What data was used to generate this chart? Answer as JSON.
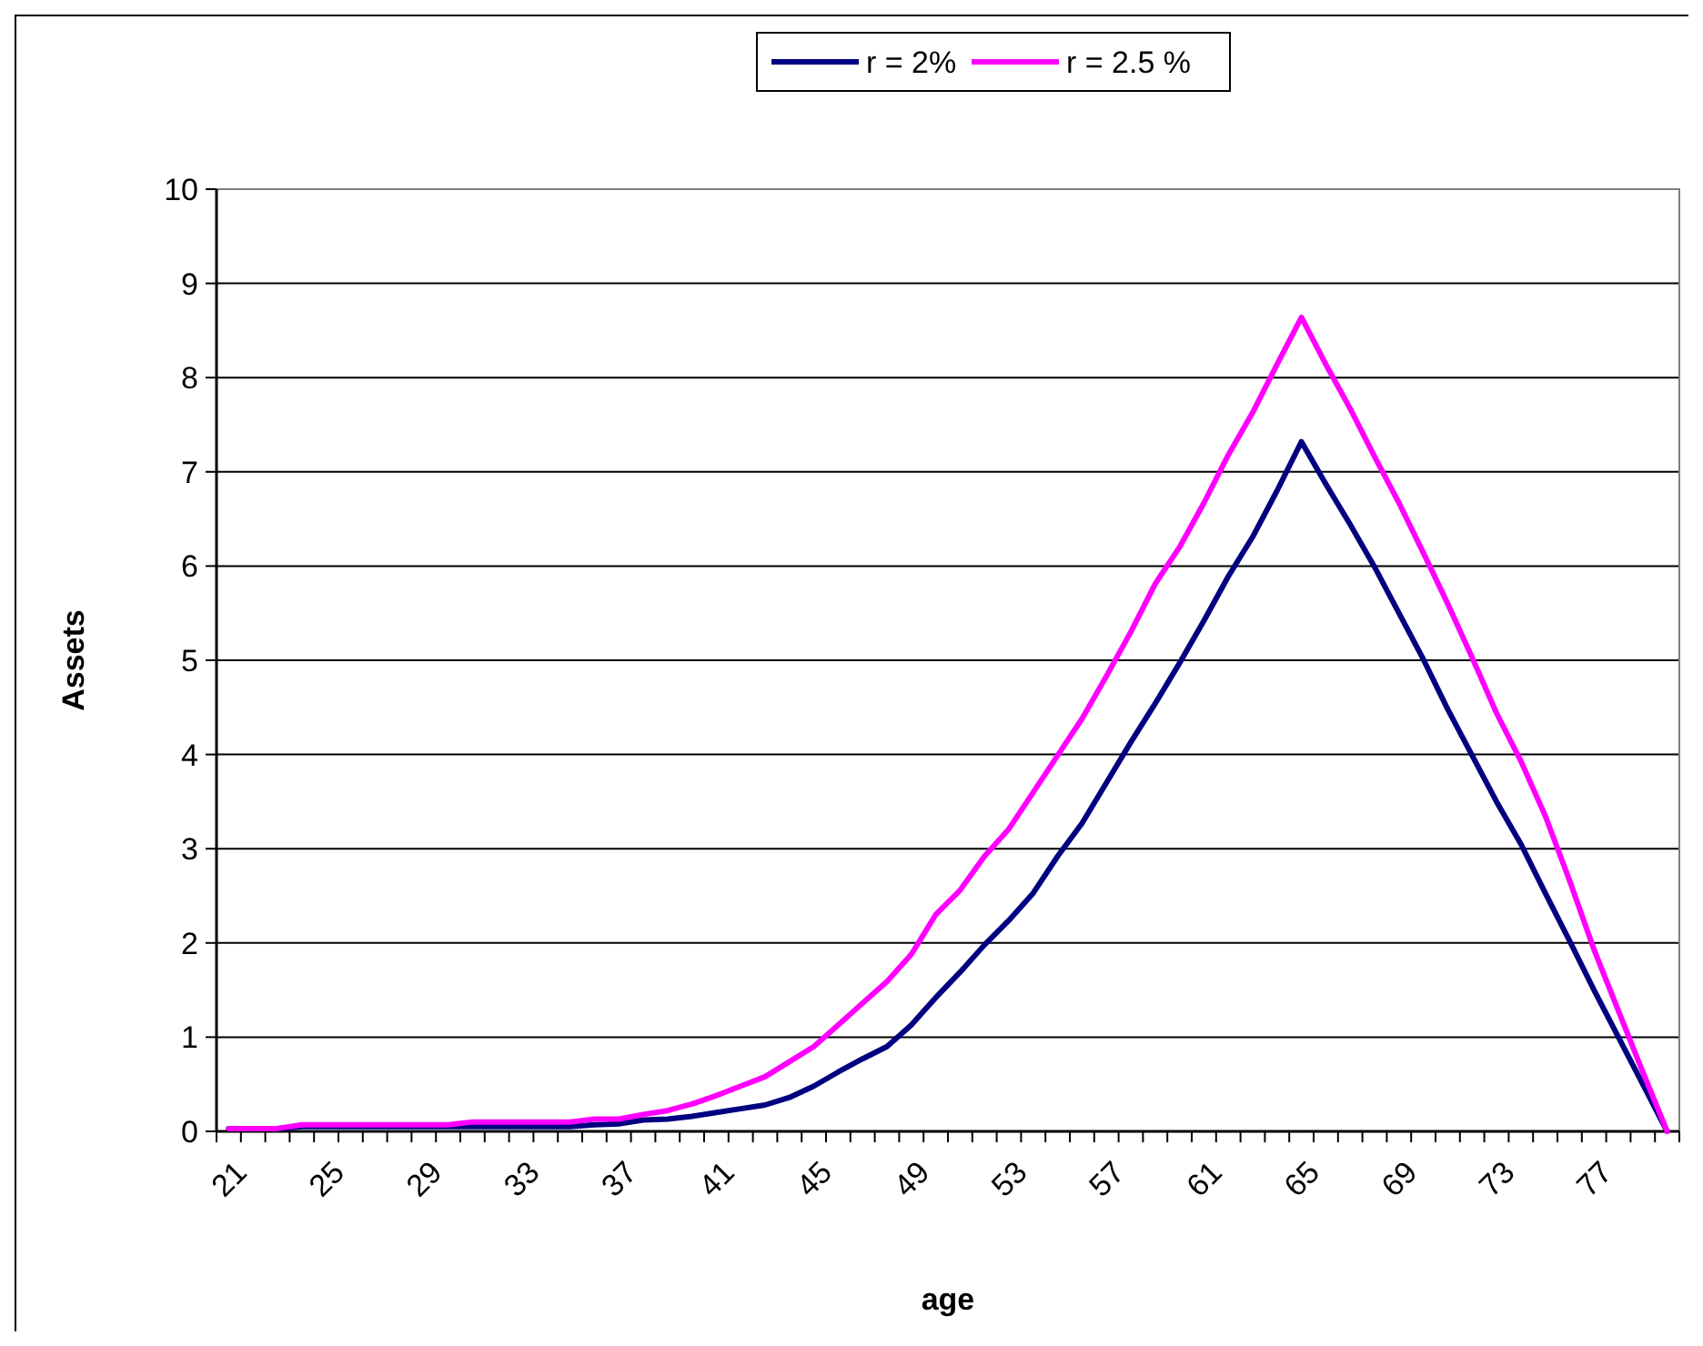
{
  "chart_data": {
    "type": "line",
    "xlabel": "age",
    "ylabel": "Assets",
    "categories": [
      "21",
      null,
      null,
      null,
      "25",
      null,
      null,
      null,
      "29",
      null,
      null,
      null,
      "33",
      null,
      null,
      null,
      "37",
      null,
      null,
      null,
      "41",
      null,
      null,
      null,
      "45",
      null,
      null,
      null,
      "49",
      null,
      null,
      null,
      "53",
      null,
      null,
      null,
      "57",
      null,
      null,
      null,
      "61",
      null,
      null,
      null,
      "65",
      null,
      null,
      null,
      "69",
      null,
      null,
      null,
      "73",
      null,
      null,
      null,
      "77",
      null,
      null,
      null
    ],
    "series": [
      {
        "name": "r = 2%",
        "color": "#000080",
        "values": [
          0.03,
          0.03,
          0.03,
          0.05,
          0.05,
          0.05,
          0.05,
          0.05,
          0.05,
          0.05,
          0.05,
          0.05,
          0.05,
          0.05,
          0.05,
          0.07,
          0.08,
          0.12,
          0.13,
          0.16,
          0.2,
          0.24,
          0.28,
          0.36,
          0.48,
          0.63,
          0.77,
          0.9,
          1.13,
          1.42,
          1.69,
          1.98,
          2.24,
          2.53,
          2.92,
          3.27,
          3.7,
          4.13,
          4.54,
          4.97,
          5.42,
          5.89,
          6.31,
          6.8,
          7.32,
          6.87,
          6.44,
          5.99,
          5.5,
          5.01,
          4.48,
          3.99,
          3.5,
          3.05,
          2.53,
          2.02,
          1.5,
          1.0,
          0.5,
          0
        ]
      },
      {
        "name": "r = 2.5 %",
        "color": "#ff00ff",
        "values": [
          0.03,
          0.03,
          0.03,
          0.07,
          0.07,
          0.07,
          0.07,
          0.07,
          0.07,
          0.07,
          0.1,
          0.1,
          0.1,
          0.1,
          0.1,
          0.13,
          0.13,
          0.18,
          0.22,
          0.29,
          0.38,
          0.48,
          0.58,
          0.74,
          0.9,
          1.13,
          1.36,
          1.59,
          1.88,
          2.3,
          2.56,
          2.92,
          3.21,
          3.6,
          3.99,
          4.38,
          4.83,
          5.3,
          5.81,
          6.2,
          6.67,
          7.18,
          7.63,
          8.14,
          8.64,
          8.14,
          7.67,
          7.16,
          6.67,
          6.14,
          5.6,
          5.03,
          4.44,
          3.93,
          3.35,
          2.66,
          1.93,
          1.28,
          0.63,
          0
        ]
      }
    ],
    "ylim": [
      0,
      10
    ],
    "yticks": [
      0,
      1,
      2,
      3,
      4,
      5,
      6,
      7,
      8,
      9,
      10
    ],
    "grid": "y",
    "legend": "top",
    "line_style": "solid",
    "marker": "none"
  }
}
